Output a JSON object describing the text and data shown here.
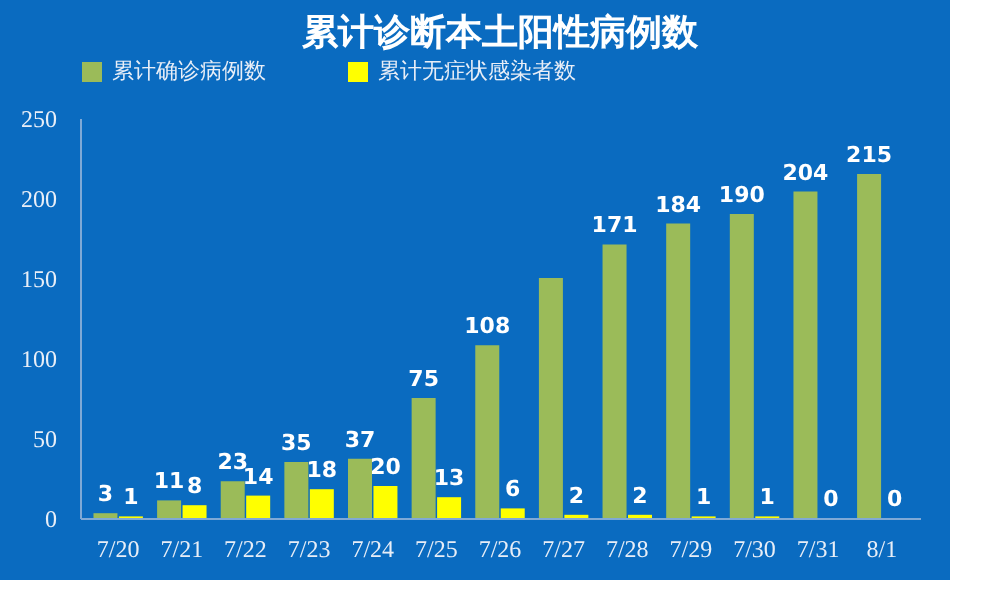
{
  "chart_data": {
    "type": "bar",
    "title": "累计诊断本土阳性病例数",
    "categories": [
      "7/20",
      "7/21",
      "7/22",
      "7/23",
      "7/24",
      "7/25",
      "7/26",
      "7/27",
      "7/28",
      "7/29",
      "7/30",
      "7/31",
      "8/1"
    ],
    "series": [
      {
        "name": "累计确诊病例数",
        "color": "#9bbb59",
        "values": [
          3,
          11,
          23,
          35,
          37,
          75,
          108,
          150,
          171,
          184,
          190,
          204,
          215
        ],
        "value_labels": [
          "3",
          "11",
          "23",
          "35",
          "37",
          "75",
          "108",
          null,
          "171",
          "184",
          "190",
          "204",
          "215"
        ]
      },
      {
        "name": "累计无症状感染者数",
        "color": "#ffff00",
        "values": [
          1,
          8,
          14,
          18,
          20,
          13,
          6,
          2,
          2,
          1,
          1,
          0,
          0
        ],
        "value_labels": [
          "1",
          "8",
          "14",
          "18",
          "20",
          "13",
          "6",
          "2",
          "2",
          "1",
          "1",
          "0",
          "0"
        ]
      }
    ],
    "ylim": [
      0,
      250
    ],
    "yticks": [
      0,
      50,
      100,
      150,
      200,
      250
    ],
    "grid": false,
    "legend": "top"
  }
}
